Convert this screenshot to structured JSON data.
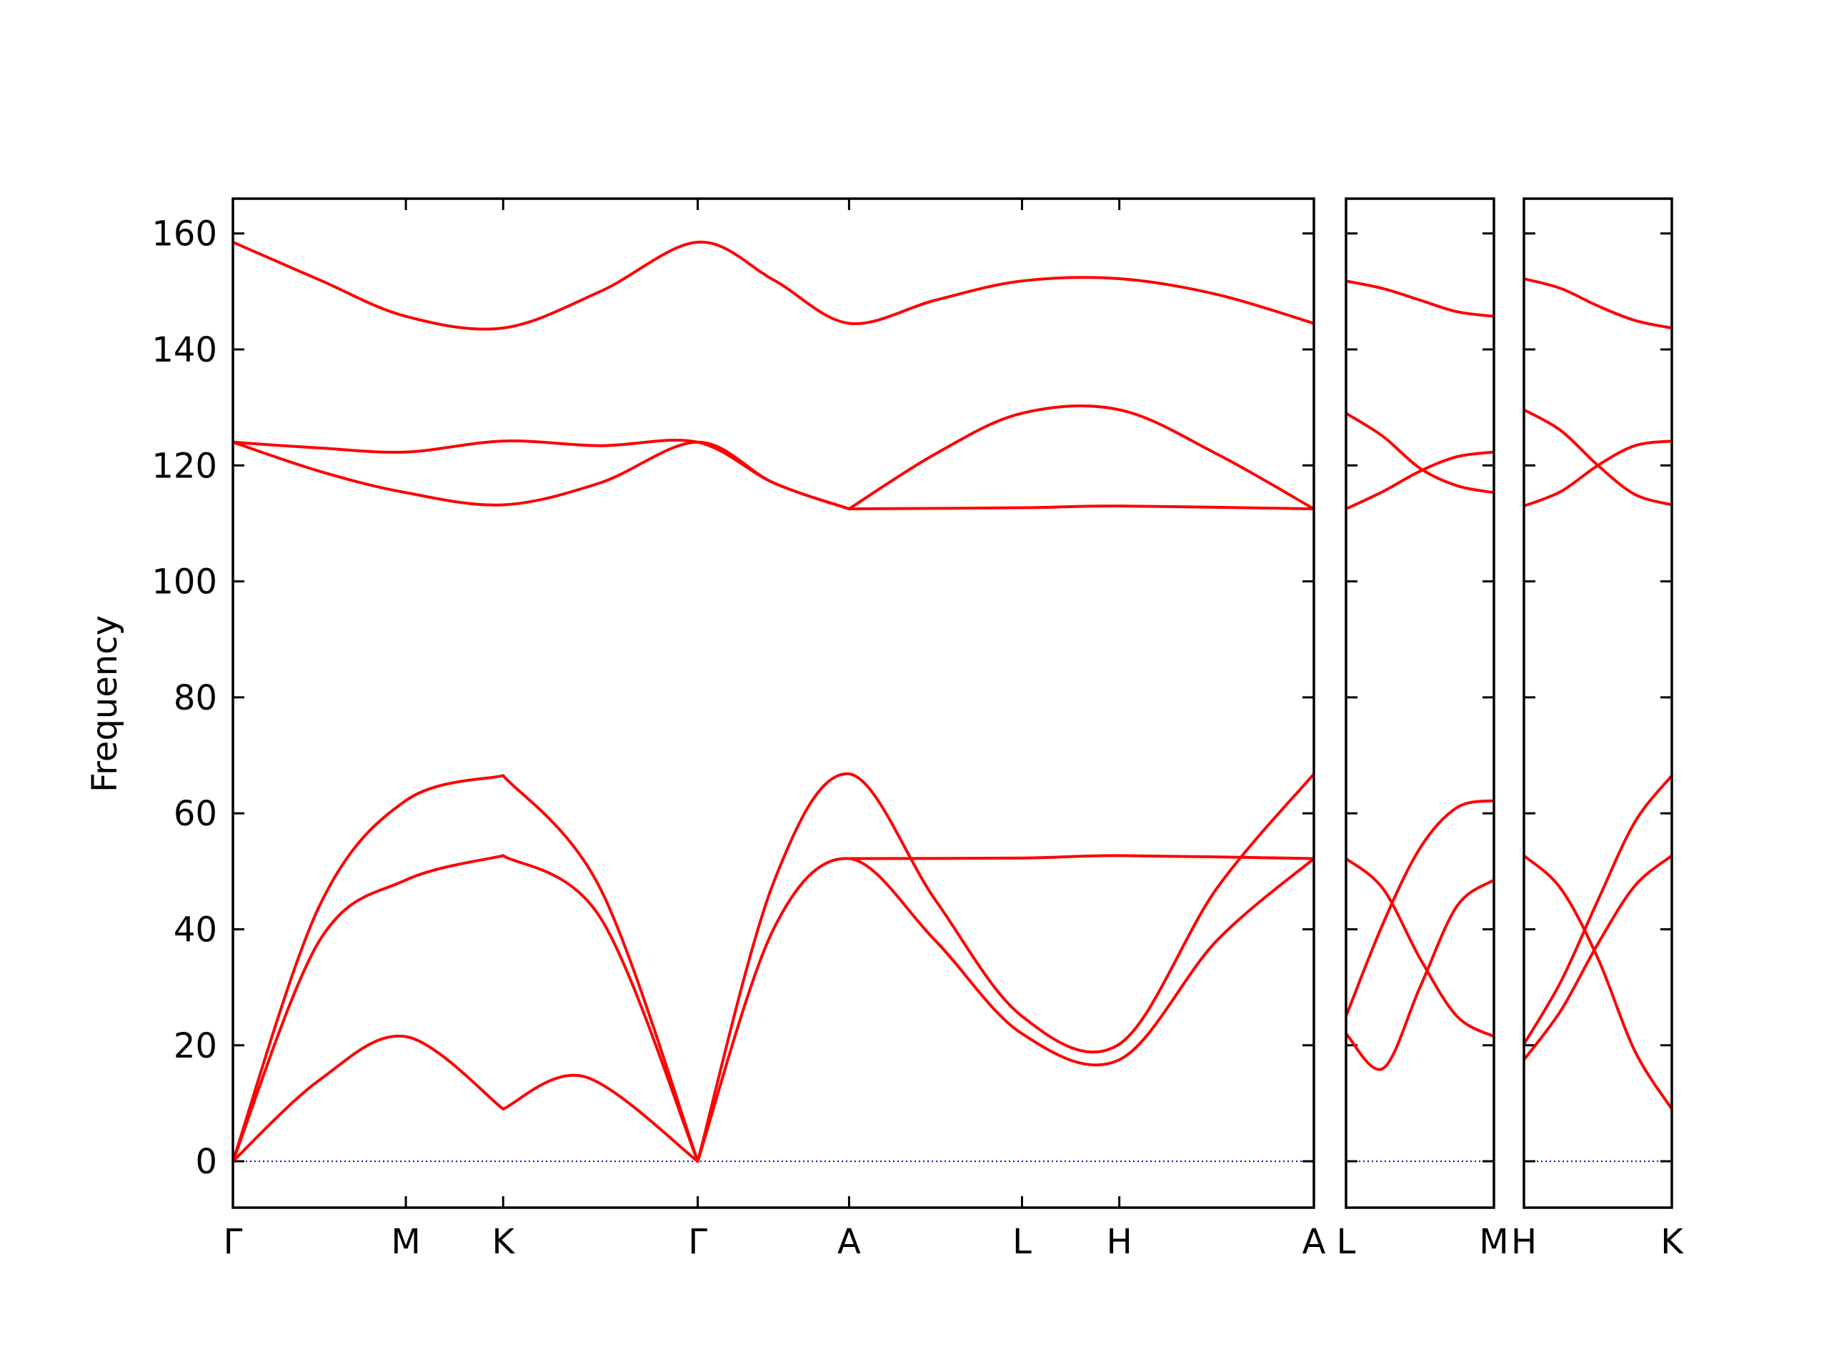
{
  "chart_data": {
    "type": "line",
    "title": "",
    "ylabel": "Frequency",
    "xlabel": "",
    "ylim": [
      -8,
      166
    ],
    "yticks": [
      0,
      20,
      40,
      60,
      80,
      100,
      120,
      140,
      160
    ],
    "grid": false,
    "zero_line": {
      "value": 0,
      "color": "#0000ff",
      "style": "dotted"
    },
    "band_color": "#ff0000",
    "panels": [
      {
        "xticks": [
          {
            "label": "Γ",
            "x": 0.0
          },
          {
            "label": "M",
            "x": 0.16
          },
          {
            "label": "K",
            "x": 0.25
          },
          {
            "label": "Γ",
            "x": 0.43
          },
          {
            "label": "A",
            "x": 0.57
          },
          {
            "label": "L",
            "x": 0.73
          },
          {
            "label": "H",
            "x": 0.82
          },
          {
            "label": "A",
            "x": 1.0
          }
        ],
        "bands": [
          {
            "x": [
              0,
              0.08,
              0.16,
              0.25
            ],
            "y": [
              0,
              14,
              21.5,
              9
            ]
          },
          {
            "x": [
              0.25,
              0.325,
              0.43
            ],
            "y": [
              9,
              14.6,
              0
            ]
          },
          {
            "x": [
              0,
              0.08,
              0.16,
              0.25
            ],
            "y": [
              0,
              38,
              48.5,
              52.7
            ]
          },
          {
            "x": [
              0.25,
              0.34,
              0.43
            ],
            "y": [
              52.7,
              42,
              0
            ]
          },
          {
            "x": [
              0,
              0.08,
              0.16,
              0.25
            ],
            "y": [
              0,
              44,
              62.2,
              66.5
            ]
          },
          {
            "x": [
              0.25,
              0.34,
              0.43
            ],
            "y": [
              66.5,
              47,
              0
            ]
          },
          {
            "x": [
              0.43,
              0.5,
              0.57,
              0.65,
              0.73,
              0.82,
              0.91,
              1.0
            ],
            "y": [
              0,
              40,
              52.2,
              38,
              22,
              17.5,
              38,
              52.2
            ]
          },
          {
            "x": [
              0.43,
              0.5,
              0.57,
              0.65,
              0.73,
              0.82,
              0.91,
              1.0
            ],
            "y": [
              0,
              48,
              66.8,
              45,
              25,
              20.2,
              47,
              66.8
            ]
          },
          {
            "x": [
              0.57,
              0.73,
              0.82,
              1.0
            ],
            "y": [
              52.2,
              52.3,
              52.7,
              52.2
            ]
          },
          {
            "x": [
              0,
              0.08,
              0.16,
              0.25,
              0.34,
              0.43,
              0.5,
              0.57
            ],
            "y": [
              124,
              119,
              115.3,
              113.2,
              117,
              124,
              117,
              112.5
            ]
          },
          {
            "x": [
              0,
              0.08,
              0.16,
              0.25,
              0.34,
              0.43,
              0.5,
              0.57
            ],
            "y": [
              124,
              123,
              122.3,
              124.2,
              123.4,
              124,
              117,
              112.5
            ]
          },
          {
            "x": [
              0.57,
              0.65,
              0.73,
              0.82,
              0.91,
              1.0
            ],
            "y": [
              112.5,
              122,
              129,
              129.6,
              122,
              112.5
            ]
          },
          {
            "x": [
              0.57,
              0.73,
              0.82,
              1.0
            ],
            "y": [
              112.5,
              112.7,
              113,
              112.5
            ]
          },
          {
            "x": [
              0,
              0.08,
              0.16,
              0.25,
              0.34,
              0.43,
              0.5,
              0.57,
              0.65,
              0.73,
              0.82,
              0.91,
              1.0
            ],
            "y": [
              158.5,
              152,
              145.7,
              143.7,
              150,
              158.5,
              152,
              144.5,
              148.5,
              151.8,
              152.2,
              149.5,
              144.5
            ]
          }
        ]
      },
      {
        "xticks": [
          {
            "label": "L",
            "x": 0.0
          },
          {
            "label": "M",
            "x": 1.0
          }
        ],
        "bands": [
          {
            "x": [
              0,
              0.25,
              0.5,
              0.75,
              1.0
            ],
            "y": [
              22,
              16,
              30,
              44,
              48.5
            ]
          },
          {
            "x": [
              0,
              0.25,
              0.5,
              0.75,
              1.0
            ],
            "y": [
              25,
              41,
              54,
              61,
              62.2
            ]
          },
          {
            "x": [
              0,
              0.25,
              0.5,
              0.75,
              1.0
            ],
            "y": [
              52.2,
              47,
              35,
              25,
              21.5
            ]
          },
          {
            "x": [
              0,
              0.25,
              0.5,
              0.75,
              1.0
            ],
            "y": [
              112.5,
              115.5,
              119,
              121.5,
              122.3
            ]
          },
          {
            "x": [
              0,
              0.25,
              0.5,
              0.75,
              1.0
            ],
            "y": [
              129,
              125,
              119.5,
              116.5,
              115.3
            ]
          },
          {
            "x": [
              0,
              0.25,
              0.5,
              0.75,
              1.0
            ],
            "y": [
              151.8,
              150.5,
              148.5,
              146.5,
              145.7
            ]
          }
        ]
      },
      {
        "xticks": [
          {
            "label": "H",
            "x": 0.0
          },
          {
            "label": "K",
            "x": 1.0
          }
        ],
        "bands": [
          {
            "x": [
              0,
              0.25,
              0.5,
              0.75,
              1.0
            ],
            "y": [
              17.5,
              26,
              37.5,
              47.5,
              52.7
            ]
          },
          {
            "x": [
              0,
              0.25,
              0.5,
              0.75,
              1.0
            ],
            "y": [
              20.2,
              31,
              45,
              58.5,
              66.5
            ]
          },
          {
            "x": [
              0,
              0.25,
              0.5,
              0.75,
              1.0
            ],
            "y": [
              52.7,
              47,
              35,
              19,
              9
            ]
          },
          {
            "x": [
              0,
              0.25,
              0.5,
              0.75,
              1.0
            ],
            "y": [
              113,
              115.5,
              120,
              123.4,
              124.2
            ]
          },
          {
            "x": [
              0,
              0.25,
              0.5,
              0.75,
              1.0
            ],
            "y": [
              129.6,
              126,
              120,
              115,
              113.2
            ]
          },
          {
            "x": [
              0,
              0.25,
              0.5,
              0.75,
              1.0
            ],
            "y": [
              152.2,
              150.5,
              147.5,
              145,
              143.7
            ]
          }
        ]
      }
    ]
  }
}
